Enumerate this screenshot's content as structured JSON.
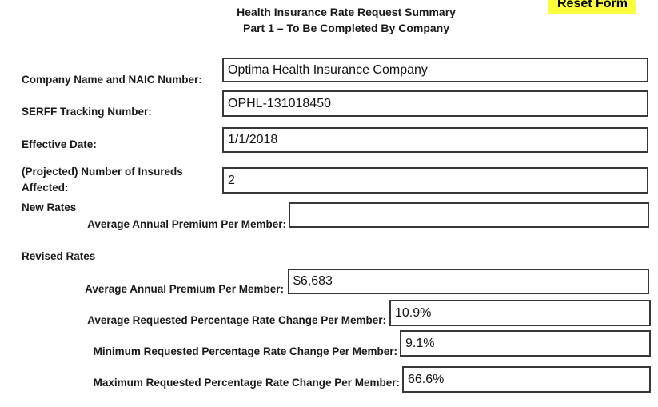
{
  "header": {
    "title_line1": "Health Insurance Rate Request Summary",
    "title_line2": "Part 1 – To Be Completed By Company",
    "reset_button_label": "Reset Form"
  },
  "colors": {
    "reset_button_bg": "#fbff3c",
    "input_border": "#383838"
  },
  "form": {
    "company_naic": {
      "label": "Company Name and NAIC Number:",
      "value": "Optima Health Insurance Company"
    },
    "serff_tracking": {
      "label": "SERFF Tracking Number:",
      "value": "OPHL-131018450"
    },
    "effective_date": {
      "label": "Effective Date:",
      "value": "1/1/2018"
    },
    "insureds_affected": {
      "label": "(Projected) Number of Insureds Affected:",
      "value": "2"
    },
    "new_rates": {
      "heading": "New Rates",
      "avg_annual_premium": {
        "label": "Average Annual Premium Per Member:",
        "value": ""
      }
    },
    "revised_rates": {
      "heading": "Revised Rates",
      "avg_annual_premium": {
        "label": "Average Annual Premium Per Member:",
        "value": "$6,683"
      },
      "avg_rate_change": {
        "label": "Average Requested Percentage Rate Change Per Member:",
        "value": "10.9%"
      },
      "min_rate_change": {
        "label": "Minimum Requested Percentage Rate Change Per Member:",
        "value": "9.1%"
      },
      "max_rate_change": {
        "label": "Maximum Requested Percentage Rate Change Per Member:",
        "value": "66.6%"
      }
    }
  }
}
